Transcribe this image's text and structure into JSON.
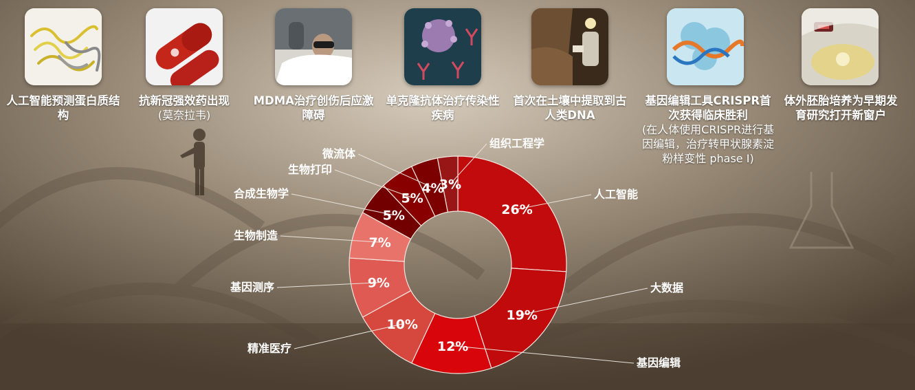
{
  "milestones": [
    {
      "title": "人工智能预测蛋白质结构",
      "subtitle": "",
      "icon": "protein-structure-icon"
    },
    {
      "title": "抗新冠强效药出现",
      "subtitle": "(莫奈拉韦)",
      "icon": "capsule-icon"
    },
    {
      "title": "MDMA治疗创伤后应激障碍",
      "subtitle": "",
      "icon": "therapy-patient-icon"
    },
    {
      "title": "单克隆抗体治疗传染性疾病",
      "subtitle": "",
      "icon": "virus-antibody-icon"
    },
    {
      "title": "首次在土壤中提取到古人类DNA",
      "subtitle": "",
      "icon": "cave-excavation-icon"
    },
    {
      "title": "基因编辑工具CRISPR首次获得临床胜利",
      "subtitle": "(在人体使用CRISPR进行基因编辑，治疗转甲状腺素淀粉样变性 phase I)",
      "icon": "crispr-complex-icon"
    },
    {
      "title": "体外胚胎培养为早期发育研究打开新窗户",
      "subtitle": "",
      "icon": "embryo-culture-icon"
    }
  ],
  "chart_data": {
    "type": "pie",
    "donut": true,
    "start": "12 o'clock",
    "direction": "clockwise",
    "slices": [
      {
        "label": "人工智能",
        "value": 26,
        "color": "#c20b0d"
      },
      {
        "label": "大数据",
        "value": 19,
        "color": "#c00a0c"
      },
      {
        "label": "基因编辑",
        "value": 12,
        "color": "#d8050a"
      },
      {
        "label": "精准医疗",
        "value": 10,
        "color": "#d6483e"
      },
      {
        "label": "基因测序",
        "value": 9,
        "color": "#df5a53"
      },
      {
        "label": "生物制造",
        "value": 7,
        "color": "#e8736b"
      },
      {
        "label": "合成生物学",
        "value": 5,
        "color": "#720000"
      },
      {
        "label": "生物打印",
        "value": 5,
        "color": "#880000"
      },
      {
        "label": "微流体",
        "value": 4,
        "color": "#7c0000"
      },
      {
        "label": "组织工程学",
        "value": 3,
        "color": "#991616"
      }
    ],
    "value_suffix": "%"
  }
}
